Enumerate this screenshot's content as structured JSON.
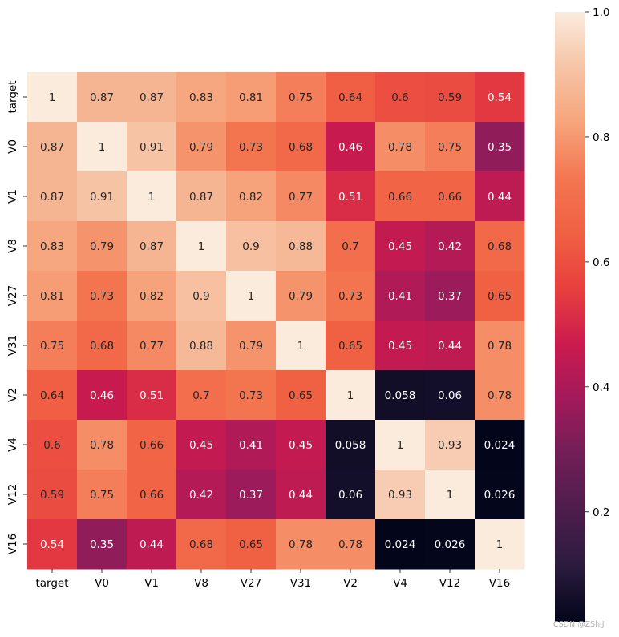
{
  "chart_data": {
    "type": "heatmap",
    "title": "",
    "xlabel": "",
    "ylabel": "",
    "x_labels": [
      "target",
      "V0",
      "V1",
      "V8",
      "V27",
      "V31",
      "V2",
      "V4",
      "V12",
      "V16"
    ],
    "y_labels": [
      "target",
      "V0",
      "V1",
      "V8",
      "V27",
      "V31",
      "V2",
      "V4",
      "V12",
      "V16"
    ],
    "cells": [
      [
        "1",
        "0.87",
        "0.87",
        "0.83",
        "0.81",
        "0.75",
        "0.64",
        "0.6",
        "0.59",
        "0.54"
      ],
      [
        "0.87",
        "1",
        "0.91",
        "0.79",
        "0.73",
        "0.68",
        "0.46",
        "0.78",
        "0.75",
        "0.35"
      ],
      [
        "0.87",
        "0.91",
        "1",
        "0.87",
        "0.82",
        "0.77",
        "0.51",
        "0.66",
        "0.66",
        "0.44"
      ],
      [
        "0.83",
        "0.79",
        "0.87",
        "1",
        "0.9",
        "0.88",
        "0.7",
        "0.45",
        "0.42",
        "0.68"
      ],
      [
        "0.81",
        "0.73",
        "0.82",
        "0.9",
        "1",
        "0.79",
        "0.73",
        "0.41",
        "0.37",
        "0.65"
      ],
      [
        "0.75",
        "0.68",
        "0.77",
        "0.88",
        "0.79",
        "1",
        "0.65",
        "0.45",
        "0.44",
        "0.78"
      ],
      [
        "0.64",
        "0.46",
        "0.51",
        "0.7",
        "0.73",
        "0.65",
        "1",
        "0.058",
        "0.06",
        "0.78"
      ],
      [
        "0.6",
        "0.78",
        "0.66",
        "0.45",
        "0.41",
        "0.45",
        "0.058",
        "1",
        "0.93",
        "0.024"
      ],
      [
        "0.59",
        "0.75",
        "0.66",
        "0.42",
        "0.37",
        "0.44",
        "0.06",
        "0.93",
        "1",
        "0.026"
      ],
      [
        "0.54",
        "0.35",
        "0.44",
        "0.68",
        "0.65",
        "0.78",
        "0.78",
        "0.024",
        "0.026",
        "1"
      ]
    ],
    "colorbar": {
      "min": 0.024,
      "max": 1.0,
      "ticks": [
        "0.2",
        "0.4",
        "0.6",
        "0.8",
        "1.0"
      ]
    },
    "colormap": "rocket",
    "colormap_stops": [
      "#03051a",
      "#2b1c3e",
      "#4c1d4b",
      "#701f57",
      "#a11a5b",
      "#cb1b4f",
      "#e83f3f",
      "#f06043",
      "#f37651",
      "#f6a47c",
      "#f6c4a6",
      "#faebdd"
    ],
    "dark_text_color": "#262626",
    "light_text_color": "#ffffff"
  },
  "watermark": "CSDN @ZShiJ"
}
